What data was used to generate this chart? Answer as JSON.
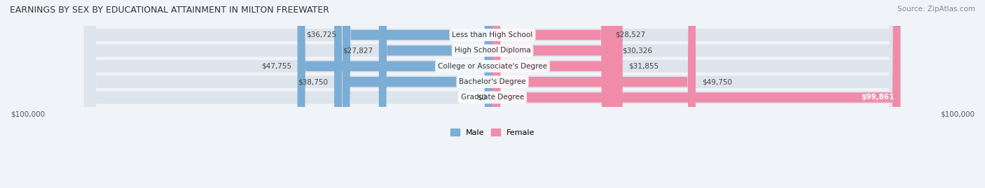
{
  "title": "EARNINGS BY SEX BY EDUCATIONAL ATTAINMENT IN MILTON FREEWATER",
  "source": "Source: ZipAtlas.com",
  "categories": [
    "Less than High School",
    "High School Diploma",
    "College or Associate's Degree",
    "Bachelor's Degree",
    "Graduate Degree"
  ],
  "male_values": [
    36725,
    27827,
    47755,
    38750,
    0
  ],
  "female_values": [
    28527,
    30326,
    31855,
    49750,
    99861
  ],
  "male_labels": [
    "$36,725",
    "$27,827",
    "$47,755",
    "$38,750",
    "$0"
  ],
  "female_labels": [
    "$28,527",
    "$30,326",
    "$31,855",
    "$49,750",
    "$99,861"
  ],
  "male_color": "#7cadd4",
  "female_color": "#f08caa",
  "male_color_grad": "#aac8e8",
  "female_color_grad": "#f5b0c2",
  "bg_color": "#f0f4f8",
  "bar_bg": "#e8edf2",
  "max_value": 100000,
  "bar_height": 0.62,
  "legend_male": "Male",
  "legend_female": "Female",
  "axis_label_left": "$100,000",
  "axis_label_right": "$100,000"
}
